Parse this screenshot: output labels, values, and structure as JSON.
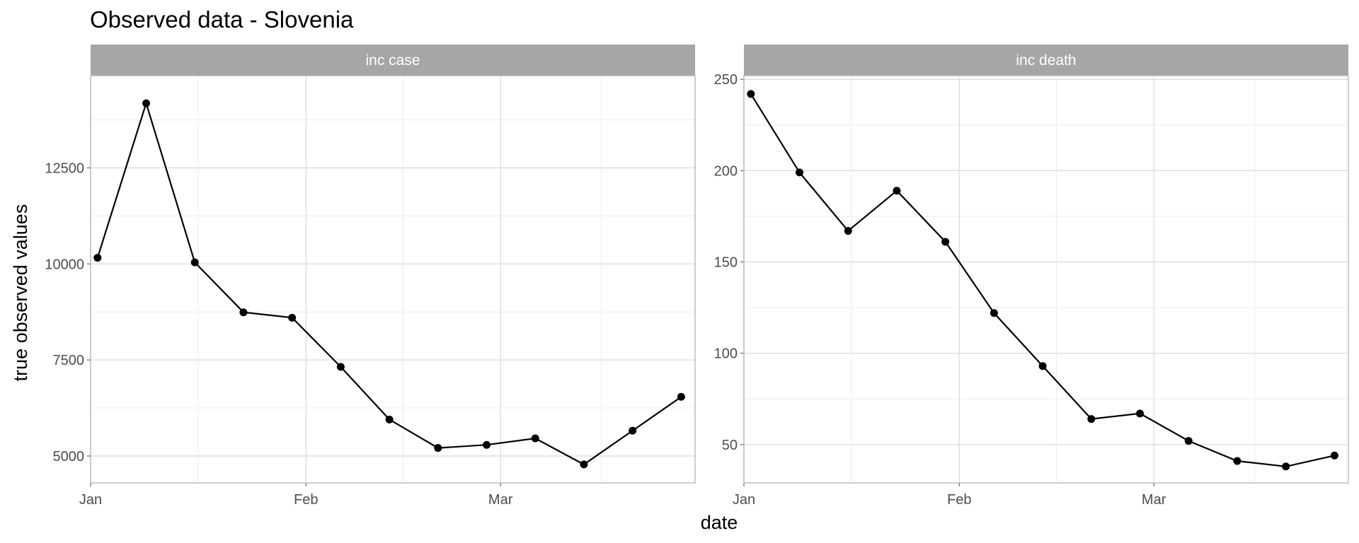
{
  "title": "Observed data - Slovenia",
  "chart_data": {
    "type": "line",
    "title": "Observed data - Slovenia",
    "xlabel": "date",
    "ylabel": "true observed values",
    "grid": true,
    "x_axis": {
      "type": "date",
      "range": [
        "2021-01-01",
        "2021-03-29"
      ],
      "tick_labels": [
        "Jan",
        "Feb",
        "Mar"
      ],
      "tick_dates": [
        "2021-01-01",
        "2021-02-01",
        "2021-03-01"
      ]
    },
    "panels": [
      {
        "facet": "inc case",
        "ylim": [
          4300,
          14900
        ],
        "y_ticks": [
          5000,
          7500,
          10000,
          12500
        ],
        "x": [
          "2021-01-02",
          "2021-01-09",
          "2021-01-16",
          "2021-01-23",
          "2021-01-30",
          "2021-02-06",
          "2021-02-13",
          "2021-02-20",
          "2021-02-27",
          "2021-03-06",
          "2021-03-13",
          "2021-03-20",
          "2021-03-27"
        ],
        "values": [
          10160,
          14180,
          10040,
          8740,
          8600,
          7320,
          5950,
          5210,
          5290,
          5460,
          4780,
          5660,
          6540
        ]
      },
      {
        "facet": "inc death",
        "ylim": [
          29,
          252
        ],
        "y_ticks": [
          50,
          100,
          150,
          200,
          250
        ],
        "x": [
          "2021-01-02",
          "2021-01-09",
          "2021-01-16",
          "2021-01-23",
          "2021-01-30",
          "2021-02-06",
          "2021-02-13",
          "2021-02-20",
          "2021-02-27",
          "2021-03-06",
          "2021-03-13",
          "2021-03-20",
          "2021-03-27"
        ],
        "values": [
          242,
          199,
          167,
          189,
          161,
          122,
          93,
          64,
          67,
          52,
          41,
          38,
          44
        ]
      }
    ]
  }
}
